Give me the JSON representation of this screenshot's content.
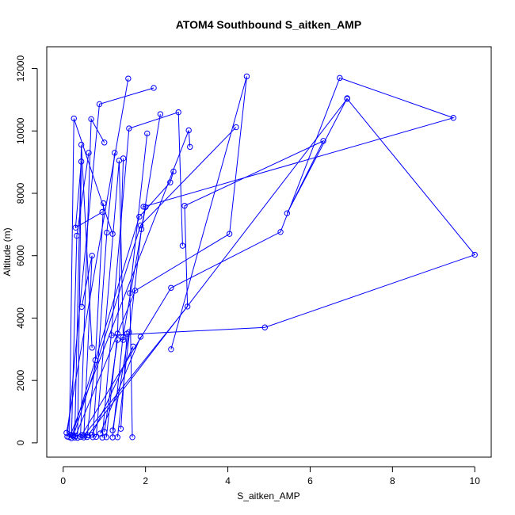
{
  "chart_data": {
    "type": "scatter",
    "title": "ATOM4 Southbound S_aitken_AMP",
    "xlabel": "S_aitken_AMP",
    "ylabel": "Altitude (m)",
    "xlim": [
      -0.4,
      10.4
    ],
    "ylim": [
      -460,
      12700
    ],
    "xticks": [
      0,
      2,
      4,
      6,
      8,
      10
    ],
    "yticks": [
      0,
      2000,
      4000,
      6000,
      8000,
      10000,
      12000
    ],
    "grid": false,
    "series_color": "#0000ff",
    "series": [
      {
        "x": [
          0.08,
          1.58
        ],
        "y": [
          320,
          11680
        ]
      },
      {
        "x": [
          0.1,
          0.88,
          2.2
        ],
        "y": [
          200,
          10860,
          11380
        ]
      },
      {
        "x": [
          0.15,
          0.26,
          1.2
        ],
        "y": [
          180,
          10400,
          6700
        ]
      },
      {
        "x": [
          0.2,
          0.33,
          0.62
        ],
        "y": [
          150,
          6640,
          9300
        ]
      },
      {
        "x": [
          0.28,
          0.44,
          0.7
        ],
        "y": [
          170,
          9560,
          3050
        ]
      },
      {
        "x": [
          0.35,
          0.44,
          0.3,
          0.95
        ],
        "y": [
          160,
          9020,
          6900,
          7400
        ]
      },
      {
        "x": [
          0.42,
          0.68,
          1.0
        ],
        "y": [
          190,
          10380,
          9630
        ]
      },
      {
        "x": [
          0.5,
          0.7,
          0.45
        ],
        "y": [
          175,
          6000,
          4360
        ]
      },
      {
        "x": [
          0.58,
          0.78,
          0.98
        ],
        "y": [
          185,
          2650,
          7680
        ]
      },
      {
        "x": [
          0.72,
          1.06,
          1.25
        ],
        "y": [
          180,
          6740,
          9300
        ]
      },
      {
        "x": [
          0.8,
          1.36,
          1.46
        ],
        "y": [
          190,
          9050,
          3300
        ]
      },
      {
        "x": [
          0.95,
          1.6,
          2.8,
          2.9
        ],
        "y": [
          170,
          10080,
          10600,
          6320
        ]
      },
      {
        "x": [
          1.05,
          1.32,
          1.46
        ],
        "y": [
          180,
          3500,
          9120
        ]
      },
      {
        "x": [
          1.2,
          1.45,
          2.0
        ],
        "y": [
          175,
          3380,
          7560
        ]
      },
      {
        "x": [
          1.32,
          1.9,
          2.36
        ],
        "y": [
          180,
          6850,
          10540
        ]
      },
      {
        "x": [
          1.68,
          1.62,
          2.04
        ],
        "y": [
          180,
          4800,
          9920
        ]
      },
      {
        "x": [
          0.18,
          3.05,
          3.08
        ],
        "y": [
          260,
          10020,
          9490
        ]
      },
      {
        "x": [
          0.22,
          1.85,
          2.6,
          2.68
        ],
        "y": [
          240,
          7250,
          8350,
          8700
        ]
      },
      {
        "x": [
          0.25,
          1.88,
          4.2
        ],
        "y": [
          230,
          6970,
          10120
        ]
      },
      {
        "x": [
          0.3,
          1.75,
          4.04,
          4.46,
          2.62
        ],
        "y": [
          220,
          4880,
          6700,
          11750,
          3000
        ]
      },
      {
        "x": [
          0.45,
          2.62,
          5.28,
          6.72,
          9.48,
          1.95
        ],
        "y": [
          250,
          4970,
          6760,
          11700,
          10420,
          7570
        ]
      },
      {
        "x": [
          0.5,
          3.02,
          2.95,
          6.32,
          5.44,
          6.9
        ],
        "y": [
          230,
          4370,
          7600,
          9680,
          7360,
          11050
        ]
      },
      {
        "x": [
          0.6,
          6.9,
          10.0,
          4.9,
          1.18
        ],
        "y": [
          240,
          11030,
          6030,
          3700,
          3450
        ]
      },
      {
        "x": [
          0.7,
          1.7
        ],
        "y": [
          260,
          3090
        ]
      },
      {
        "x": [
          0.9,
          1.88
        ],
        "y": [
          300,
          3400
        ]
      },
      {
        "x": [
          1.0,
          1.32
        ],
        "y": [
          350,
          3300
        ]
      },
      {
        "x": [
          1.2,
          1.6
        ],
        "y": [
          400,
          3550
        ]
      },
      {
        "x": [
          1.4,
          1.55
        ],
        "y": [
          450,
          3500
        ]
      }
    ]
  }
}
